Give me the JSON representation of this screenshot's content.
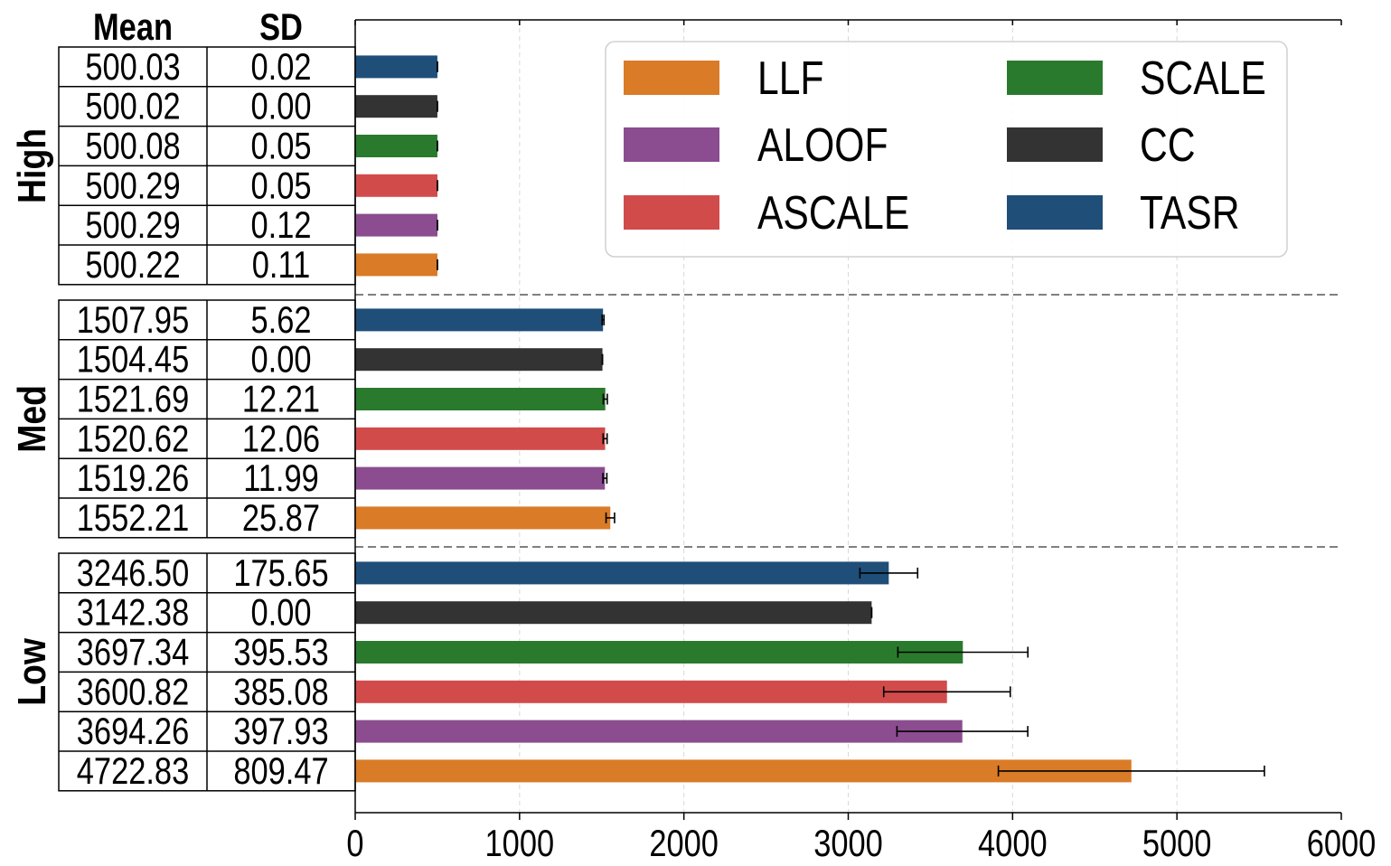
{
  "chart_data": {
    "type": "bar",
    "orientation": "horizontal",
    "xlim": [
      0,
      6000
    ],
    "x_ticks": [
      "0",
      "1000",
      "2000",
      "3000",
      "4000",
      "5000",
      "6000"
    ],
    "grid": "vertical dashed",
    "table_headers": [
      "Mean",
      "SD"
    ],
    "groups": [
      {
        "name": "High",
        "rows": [
          {
            "method": "TASR",
            "mean": 500.03,
            "sd": 0.02,
            "mean_label": "500.03",
            "sd_label": "0.02"
          },
          {
            "method": "CC",
            "mean": 500.02,
            "sd": 0.0,
            "mean_label": "500.02",
            "sd_label": "0.00"
          },
          {
            "method": "SCALE",
            "mean": 500.08,
            "sd": 0.05,
            "mean_label": "500.08",
            "sd_label": "0.05"
          },
          {
            "method": "ASCALE",
            "mean": 500.29,
            "sd": 0.05,
            "mean_label": "500.29",
            "sd_label": "0.05"
          },
          {
            "method": "ALOOF",
            "mean": 500.29,
            "sd": 0.12,
            "mean_label": "500.29",
            "sd_label": "0.12"
          },
          {
            "method": "LLF",
            "mean": 500.22,
            "sd": 0.11,
            "mean_label": "500.22",
            "sd_label": "0.11"
          }
        ]
      },
      {
        "name": "Med",
        "rows": [
          {
            "method": "TASR",
            "mean": 1507.95,
            "sd": 5.62,
            "mean_label": "1507.95",
            "sd_label": "5.62"
          },
          {
            "method": "CC",
            "mean": 1504.45,
            "sd": 0.0,
            "mean_label": "1504.45",
            "sd_label": "0.00"
          },
          {
            "method": "SCALE",
            "mean": 1521.69,
            "sd": 12.21,
            "mean_label": "1521.69",
            "sd_label": "12.21"
          },
          {
            "method": "ASCALE",
            "mean": 1520.62,
            "sd": 12.06,
            "mean_label": "1520.62",
            "sd_label": "12.06"
          },
          {
            "method": "ALOOF",
            "mean": 1519.26,
            "sd": 11.99,
            "mean_label": "1519.26",
            "sd_label": "11.99"
          },
          {
            "method": "LLF",
            "mean": 1552.21,
            "sd": 25.87,
            "mean_label": "1552.21",
            "sd_label": "25.87"
          }
        ]
      },
      {
        "name": "Low",
        "rows": [
          {
            "method": "TASR",
            "mean": 3246.5,
            "sd": 175.65,
            "mean_label": "3246.50",
            "sd_label": "175.65"
          },
          {
            "method": "CC",
            "mean": 3142.38,
            "sd": 0.0,
            "mean_label": "3142.38",
            "sd_label": "0.00"
          },
          {
            "method": "SCALE",
            "mean": 3697.34,
            "sd": 395.53,
            "mean_label": "3697.34",
            "sd_label": "395.53"
          },
          {
            "method": "ASCALE",
            "mean": 3600.82,
            "sd": 385.08,
            "mean_label": "3600.82",
            "sd_label": "385.08"
          },
          {
            "method": "ALOOF",
            "mean": 3694.26,
            "sd": 397.93,
            "mean_label": "3694.26",
            "sd_label": "397.93"
          },
          {
            "method": "LLF",
            "mean": 4722.83,
            "sd": 809.47,
            "mean_label": "4722.83",
            "sd_label": "809.47"
          }
        ]
      }
    ],
    "legend": {
      "placement": "top-right",
      "entries": [
        {
          "name": "LLF",
          "color": "#d97b27"
        },
        {
          "name": "SCALE",
          "color": "#2a7a2e"
        },
        {
          "name": "ALOOF",
          "color": "#8b4d8f"
        },
        {
          "name": "CC",
          "color": "#333333"
        },
        {
          "name": "ASCALE",
          "color": "#d24b4b"
        },
        {
          "name": "TASR",
          "color": "#1f4e79"
        }
      ]
    }
  }
}
